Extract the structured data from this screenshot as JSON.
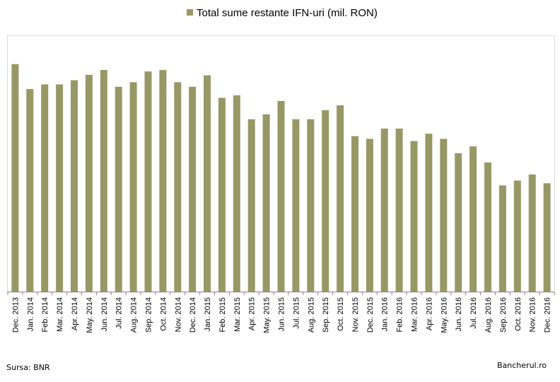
{
  "chart_data": {
    "type": "bar",
    "legend": "Total sume restante IFN-uri (mil. RON)",
    "legend_position": "top-center",
    "grid": false,
    "bar_color": "#989866",
    "ylim": [
      0,
      105
    ],
    "categories": [
      "Dec. 2013",
      "Jan. 2014",
      "Feb. 2014",
      "Mar. 2014",
      "Apr. 2014",
      "May. 2014",
      "Jun. 2014",
      "Jul. 2014",
      "Aug. 2014",
      "Sep. 2014",
      "Oct. 2014",
      "Nov. 2014",
      "Dec. 2014",
      "Jan. 2015",
      "Feb. 2015",
      "Mar. 2015",
      "Apr. 2015",
      "May. 2015",
      "Jun. 2015",
      "Jul. 2015",
      "Aug. 2015",
      "Sep. 2015",
      "Oct. 2015",
      "Nov. 2015",
      "Dec. 2015",
      "Jan. 2016",
      "Feb. 2016",
      "Mar. 2016",
      "Apr. 2016",
      "May. 2016",
      "Jun. 2016",
      "Jul. 2016",
      "Aug. 2016",
      "Sep. 2016",
      "Oct. 2016",
      "Nov. 2016",
      "Dec. 2016"
    ],
    "values": [
      93.2,
      83.0,
      84.9,
      84.9,
      86.6,
      88.8,
      90.8,
      83.9,
      85.8,
      90.2,
      90.8,
      85.8,
      83.9,
      88.6,
      79.4,
      80.4,
      70.6,
      72.6,
      78.1,
      70.6,
      70.6,
      74.3,
      76.3,
      63.7,
      62.6,
      66.8,
      66.8,
      61.7,
      64.7,
      62.6,
      56.7,
      59.5,
      52.9,
      43.5,
      45.5,
      48.0,
      44.4
    ]
  },
  "footer": {
    "source": "Sursa: BNR",
    "brand": "Bancherul.ro"
  }
}
